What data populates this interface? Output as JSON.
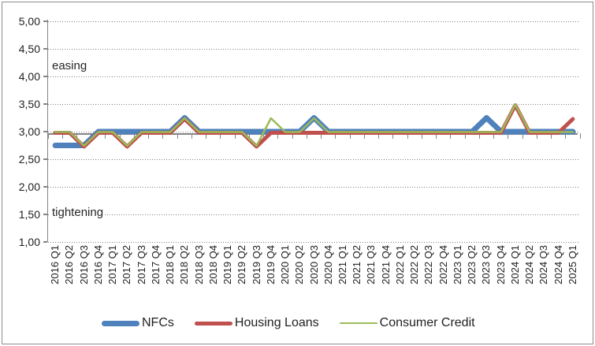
{
  "chart_data": {
    "type": "line",
    "title": "",
    "y_axis": {
      "min": 1.0,
      "max": 5.0,
      "step": 0.5,
      "tick_labels": [
        "5,00",
        "4,50",
        "4,00",
        "3,50",
        "3,00",
        "2,50",
        "2,00",
        "1,50",
        "1,00"
      ],
      "axis_crosses_at": 3.0,
      "number_format": "decimal-comma"
    },
    "x_categories": [
      "2016 Q1",
      "2016 Q2",
      "2016 Q3",
      "2016 Q4",
      "2017 Q1",
      "2017 Q2",
      "2017 Q3",
      "2017 Q4",
      "2018 Q1",
      "2018 Q2",
      "2018 Q3",
      "2018 Q4",
      "2019 Q1",
      "2019 Q2",
      "2019 Q3",
      "2019 Q4",
      "2020 Q1",
      "2020 Q2",
      "2020 Q3",
      "2020 Q4",
      "2021 Q1",
      "2021 Q2",
      "2021 Q3",
      "2021 Q4",
      "2022 Q1",
      "2022 Q2",
      "2022 Q3",
      "2022 Q4",
      "2023 Q1",
      "2023 Q2",
      "2023 Q3",
      "2023 Q4",
      "2024 Q1",
      "2024 Q2",
      "2024 Q3",
      "2024 Q4",
      "2025 Q1"
    ],
    "annotations": {
      "upper": "easing",
      "lower": "tightening"
    },
    "series": [
      {
        "name": "NFCs",
        "color": "#4F81BD",
        "line_width": 7,
        "values": [
          2.75,
          2.75,
          2.75,
          3.0,
          3.0,
          3.0,
          3.0,
          3.0,
          3.0,
          3.25,
          3.0,
          3.0,
          3.0,
          3.0,
          3.0,
          3.0,
          3.0,
          3.0,
          3.25,
          3.0,
          3.0,
          3.0,
          3.0,
          3.0,
          3.0,
          3.0,
          3.0,
          3.0,
          3.0,
          3.0,
          3.25,
          3.0,
          3.0,
          3.0,
          3.0,
          3.0,
          3.0
        ]
      },
      {
        "name": "Housing Loans",
        "color": "#C0504D",
        "line_width": 5,
        "values": [
          3.0,
          3.0,
          2.75,
          3.0,
          3.0,
          2.75,
          3.0,
          3.0,
          3.0,
          3.25,
          3.0,
          3.0,
          3.0,
          3.0,
          2.75,
          3.0,
          3.0,
          3.0,
          3.0,
          3.0,
          3.0,
          3.0,
          3.0,
          3.0,
          3.0,
          3.0,
          3.0,
          3.0,
          3.0,
          3.0,
          3.0,
          3.0,
          3.5,
          3.0,
          3.0,
          3.0,
          3.25
        ]
      },
      {
        "name": "Consumer Credit",
        "color": "#9BBB59",
        "line_width": 2.5,
        "values": [
          3.0,
          3.0,
          2.75,
          3.0,
          3.0,
          2.75,
          3.0,
          3.0,
          3.0,
          3.25,
          3.0,
          3.0,
          3.0,
          3.0,
          2.75,
          3.25,
          3.0,
          3.0,
          3.25,
          3.0,
          3.0,
          3.0,
          3.0,
          3.0,
          3.0,
          3.0,
          3.0,
          3.0,
          3.0,
          3.0,
          3.0,
          3.0,
          3.5,
          3.0,
          3.0,
          3.0,
          3.0
        ]
      }
    ],
    "legend_position": "bottom",
    "grid": {
      "horizontal": "dotted"
    }
  },
  "frame": {
    "border_color": "#8c8c8c",
    "background": "#ffffff"
  }
}
